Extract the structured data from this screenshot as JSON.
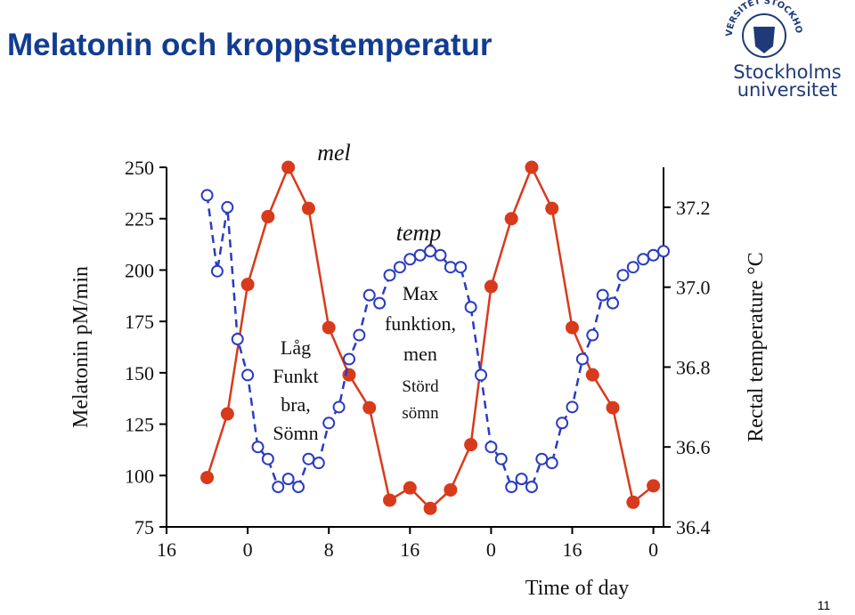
{
  "title": "Melatonin och kroppstemperatur",
  "logo": {
    "ring": "UNIVERSITET STOCKHOLMS",
    "line1": "Stockholms",
    "line2": "universitet"
  },
  "page_number": "11",
  "chart_data": {
    "type": "line",
    "x_label": "Time of day",
    "y_label": "Melatonin pM/min",
    "y2_label": "Rectal temperature °C",
    "xlim": [
      0,
      49
    ],
    "xticks": [
      {
        "value": 0,
        "label": "16"
      },
      {
        "value": 8,
        "label": "0"
      },
      {
        "value": 16,
        "label": "8"
      },
      {
        "value": 24,
        "label": "16"
      },
      {
        "value": 32,
        "label": "0"
      },
      {
        "value": 40,
        "label": "16"
      },
      {
        "value": 48,
        "label": "0"
      }
    ],
    "ylim": [
      75,
      250
    ],
    "yticks": [
      75,
      100,
      125,
      150,
      175,
      200,
      225,
      250
    ],
    "y2lim": [
      36.4,
      37.3
    ],
    "y2ticks": [
      36.4,
      36.6,
      36.8,
      {
        "value": 37,
        "label": "37.0"
      },
      37.2
    ],
    "series": [
      {
        "name": "mel",
        "color": "#d83a1c",
        "line": "solid",
        "x": [
          4,
          6,
          8,
          10,
          12,
          14,
          16,
          18,
          20,
          22,
          24,
          26,
          28,
          30,
          32,
          34,
          36,
          38,
          40,
          42,
          44,
          46,
          48
        ],
        "values": [
          99,
          130,
          193,
          226,
          250,
          230,
          172,
          149,
          133,
          88,
          94,
          84,
          93,
          115,
          192,
          225,
          250,
          230,
          172,
          149,
          133,
          87,
          95
        ]
      },
      {
        "name": "temp",
        "color": "#2a3cc0",
        "line": "dashed",
        "axis": "y2",
        "x": [
          4,
          5,
          6,
          7,
          8,
          9,
          10,
          11,
          12,
          13,
          14,
          15,
          16,
          17,
          18,
          19,
          20,
          21,
          22,
          23,
          24,
          25,
          26,
          27,
          28,
          29,
          30,
          31,
          32,
          33,
          34,
          35,
          36,
          37,
          38,
          39,
          40,
          41,
          42,
          43,
          44,
          45,
          46,
          47,
          48,
          49
        ],
        "values": [
          37.23,
          37.04,
          37.2,
          36.87,
          36.78,
          36.6,
          36.57,
          36.5,
          36.52,
          36.5,
          36.57,
          36.56,
          36.66,
          36.7,
          36.82,
          36.88,
          36.98,
          36.96,
          37.03,
          37.05,
          37.07,
          37.08,
          37.09,
          37.08,
          37.05,
          37.05,
          36.95,
          36.78,
          36.6,
          36.57,
          36.5,
          36.52,
          36.5,
          36.57,
          36.56,
          36.66,
          36.7,
          36.82,
          36.88,
          36.98,
          36.96,
          37.03,
          37.05,
          37.07,
          37.08,
          37.09
        ]
      }
    ],
    "annotations": [
      {
        "lines": [
          "mel"
        ]
      },
      {
        "lines": [
          "temp"
        ]
      },
      {
        "lines": [
          "Låg",
          "Funkt",
          "bra,",
          "Sömn"
        ]
      },
      {
        "lines": [
          "Max",
          "funktion,",
          "men"
        ]
      },
      {
        "lines": [
          "Störd",
          "sömn"
        ]
      }
    ]
  }
}
